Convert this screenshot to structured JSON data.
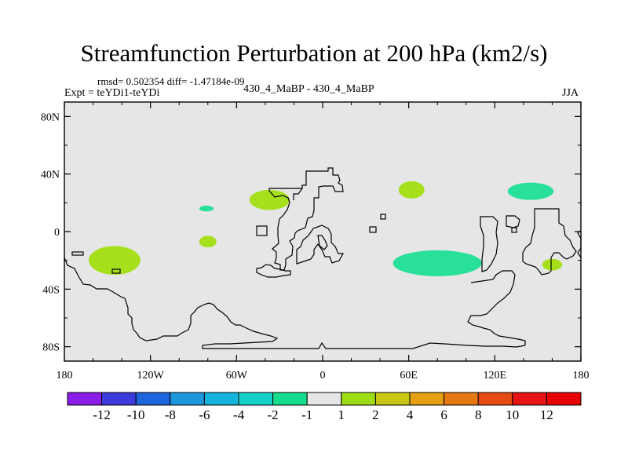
{
  "chart_data": {
    "type": "contour-map",
    "title": "Streamfunction Perturbation at 200 hPa (km2/s)",
    "subtitle_left_top": "rmsd= 0.502354 diff= -1.47184e-09",
    "subtitle_left": "Expt = teYDi1-teYDi",
    "subtitle_center": "430_4_MaBP - 430_4_MaBP",
    "subtitle_right": "JJA",
    "background_color": "#e6e6e6",
    "coastline_color": "#000000",
    "xaxis": {
      "range": [
        -180,
        180
      ],
      "ticks": [
        {
          "value": -180,
          "label": "180"
        },
        {
          "value": -120,
          "label": "120W"
        },
        {
          "value": -60,
          "label": "60W"
        },
        {
          "value": 0,
          "label": "0"
        },
        {
          "value": 60,
          "label": "60E"
        },
        {
          "value": 120,
          "label": "120E"
        },
        {
          "value": 180,
          "label": "180"
        }
      ]
    },
    "yaxis": {
      "range": [
        -90,
        90
      ],
      "ticks": [
        {
          "value": 80,
          "label": "80N"
        },
        {
          "value": 40,
          "label": "40N"
        },
        {
          "value": 0,
          "label": "0"
        },
        {
          "value": -40,
          "label": "40S"
        },
        {
          "value": -80,
          "label": "80S"
        }
      ]
    },
    "colorbar": {
      "labels": [
        "-12",
        "-10",
        "-8",
        "-6",
        "-4",
        "-2",
        "-1",
        "1",
        "2",
        "4",
        "6",
        "8",
        "10",
        "12"
      ],
      "colors": [
        "#8a1ee6",
        "#3c3cdc",
        "#1e64dc",
        "#1e96dc",
        "#14b4dc",
        "#14d2c8",
        "#14dc8c",
        "#e6e6e6",
        "#a0dc14",
        "#c8c814",
        "#e6a014",
        "#e67814",
        "#e64b14",
        "#e61414",
        "#e60000"
      ]
    },
    "anomalies": [
      {
        "lon": -37,
        "lat": 22,
        "rx": 14,
        "ry": 7,
        "level": "2",
        "color": "#a6e01c"
      },
      {
        "lon": 62,
        "lat": 29,
        "rx": 9,
        "ry": 6,
        "level": "2",
        "color": "#a6e01c"
      },
      {
        "lon": -81,
        "lat": 16,
        "rx": 5,
        "ry": 2,
        "level": "-1",
        "color": "#28e09a"
      },
      {
        "lon": -80,
        "lat": -7,
        "rx": 6,
        "ry": 4,
        "level": "2",
        "color": "#a6e01c"
      },
      {
        "lon": -145,
        "lat": -20,
        "rx": 18,
        "ry": 10,
        "level": "2",
        "color": "#a6e01c"
      },
      {
        "lon": 145,
        "lat": 28,
        "rx": 16,
        "ry": 6,
        "level": "-1",
        "color": "#28e09a"
      },
      {
        "lon": 80,
        "lat": -22,
        "rx": 31,
        "ry": 9,
        "level": "-1",
        "color": "#28e09a"
      },
      {
        "lon": 160,
        "lat": -23,
        "rx": 7,
        "ry": 4,
        "level": "2",
        "color": "#a6e01c"
      }
    ]
  }
}
